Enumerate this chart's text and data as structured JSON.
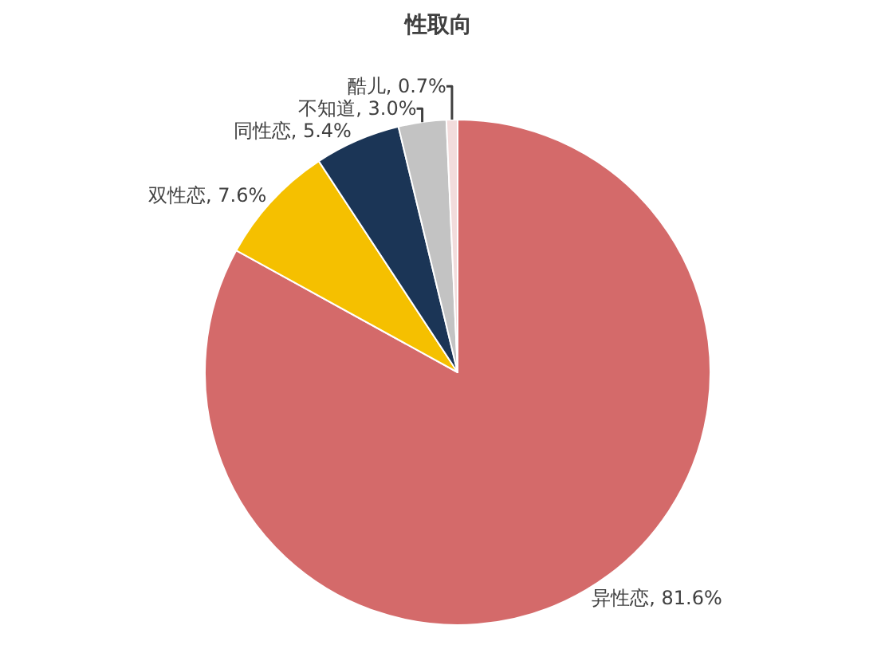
{
  "chart_data": {
    "type": "pie",
    "title": "性取向",
    "categories": [
      "异性恋",
      "双性恋",
      "同性恋",
      "不知道",
      "酷儿"
    ],
    "values": [
      81.6,
      7.6,
      5.4,
      3.0,
      0.7
    ],
    "value_labels": [
      "81.6%",
      "7.6%",
      "5.4%",
      "3.0%",
      "0.7%"
    ],
    "colors": [
      "#d46a6a",
      "#f5c000",
      "#1b3556",
      "#c3c3c3",
      "#f2dcdc"
    ],
    "legend": false
  }
}
